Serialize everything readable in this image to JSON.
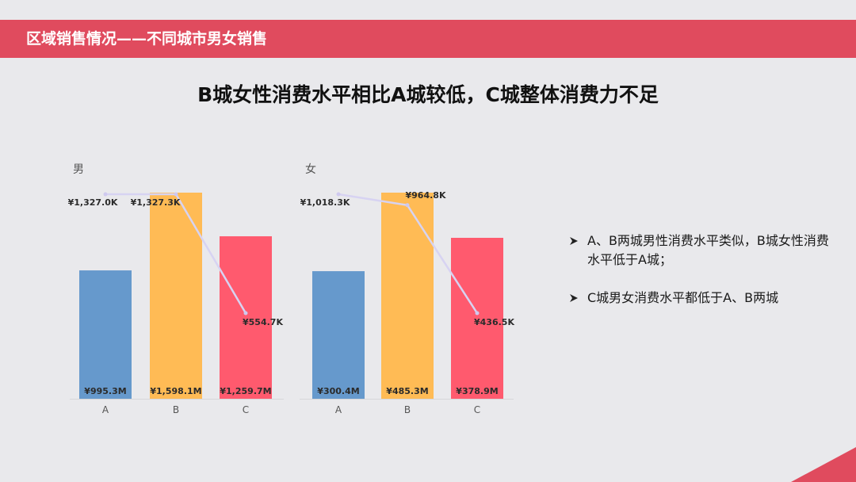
{
  "banner": {
    "title": "区域销售情况——不同城市男女销售"
  },
  "headline": "B城女性消费水平相比A城较低，C城整体消费力不足",
  "colors": {
    "banner": "#e04b5e",
    "bar_a": "#6699cc",
    "bar_b": "#ffbb55",
    "bar_c": "#ff5a6e",
    "line": "#d7d3f2",
    "corner": "#e04b5e"
  },
  "chart_data": [
    {
      "type": "bar",
      "title": "男",
      "categories": [
        "A",
        "B",
        "C"
      ],
      "values": [
        995.3,
        1598.1,
        1259.7
      ],
      "value_labels": [
        "¥995.3M",
        "¥1,598.1M",
        "¥1,259.7M"
      ],
      "ylim": [
        0,
        1598.1
      ],
      "bar_colors": [
        "#6699cc",
        "#ffbb55",
        "#ff5a6e"
      ],
      "line_series": {
        "values": [
          1327.0,
          1327.3,
          554.7
        ],
        "labels": [
          "¥1,327.0K",
          "¥1,327.3K",
          "¥554.7K"
        ],
        "ylim": [
          0,
          1400
        ]
      }
    },
    {
      "type": "bar",
      "title": "女",
      "categories": [
        "A",
        "B",
        "C"
      ],
      "values": [
        300.4,
        485.3,
        378.9
      ],
      "value_labels": [
        "¥300.4M",
        "¥485.3M",
        "¥378.9M"
      ],
      "ylim": [
        0,
        485.3
      ],
      "bar_colors": [
        "#6699cc",
        "#ffbb55",
        "#ff5a6e"
      ],
      "line_series": {
        "values": [
          1018.3,
          964.8,
          436.5
        ],
        "labels": [
          "¥1,018.3K",
          "¥964.8K",
          "¥436.5K"
        ],
        "ylim": [
          0,
          1100
        ]
      }
    }
  ],
  "insights": [
    "A、B两城男性消费水平类似，B城女性消费水平低于A城；",
    "C城男女消费水平都低于A、B两城"
  ],
  "icons": {
    "bullet": "arrow-bullet-icon",
    "corner": "corner-triangle-icon"
  }
}
